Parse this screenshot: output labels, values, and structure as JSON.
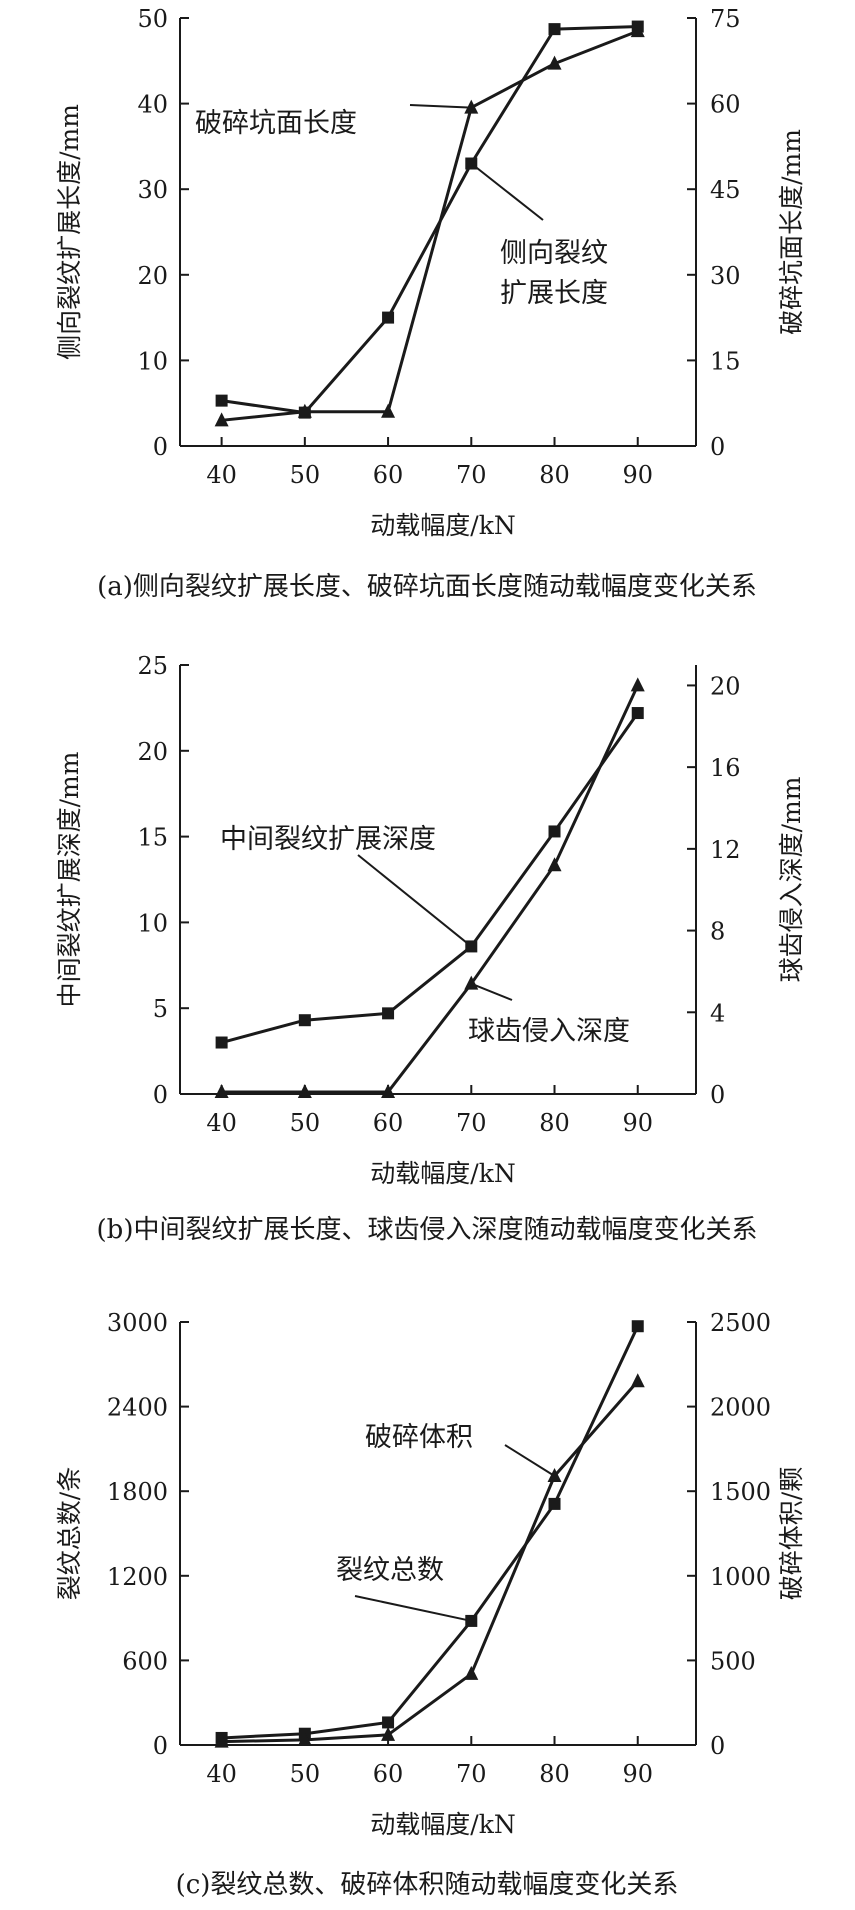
{
  "chart_data": [
    {
      "type": "line",
      "caption": "(a)侧向裂纹扩展长度、破碎坑面长度随动载幅度变化关系",
      "xlabel": "动载幅度/kN",
      "ylabel_left": "侧向裂纹扩展长度/mm",
      "ylabel_right": "破碎坑面长度/mm",
      "x": [
        40,
        50,
        60,
        70,
        80,
        90
      ],
      "xlim": [
        35,
        97
      ],
      "ylim_left": [
        0,
        50
      ],
      "yticks_left": [
        0,
        10,
        20,
        30,
        40,
        50
      ],
      "ylim_right": [
        0,
        75
      ],
      "yticks_right": [
        0,
        15,
        30,
        45,
        60,
        75
      ],
      "series": [
        {
          "name": "侧向裂纹扩展长度",
          "axis": "left",
          "marker": "square",
          "values": [
            5.3,
            3.9,
            15.0,
            33.0,
            48.7,
            49.0
          ]
        },
        {
          "name": "破碎坑面长度",
          "axis": "right",
          "marker": "triangle",
          "values": [
            4.5,
            6.0,
            6.0,
            59.3,
            67.0,
            72.7
          ]
        }
      ],
      "annotations": [
        {
          "label": "破碎坑面长度",
          "series": 1,
          "point": 3
        },
        {
          "label_lines": [
            "侧向裂纹",
            "扩展长度"
          ],
          "series": 0,
          "point": 3
        }
      ]
    },
    {
      "type": "line",
      "caption": "(b)中间裂纹扩展长度、球齿侵入深度随动载幅度变化关系",
      "xlabel": "动载幅度/kN",
      "ylabel_left": "中间裂纹扩展深度/mm",
      "ylabel_right": "球齿侵入深度/mm",
      "x": [
        40,
        50,
        60,
        70,
        80,
        90
      ],
      "xlim": [
        35,
        97
      ],
      "ylim_left": [
        0,
        25
      ],
      "yticks_left": [
        0,
        5,
        10,
        15,
        20,
        25
      ],
      "ylim_right": [
        0,
        21
      ],
      "yticks_right": [
        0,
        4,
        8,
        12,
        16,
        20
      ],
      "series": [
        {
          "name": "中间裂纹扩展深度",
          "axis": "left",
          "marker": "square",
          "values": [
            3.0,
            4.3,
            4.7,
            8.6,
            15.3,
            22.2
          ]
        },
        {
          "name": "球齿侵入深度",
          "axis": "right",
          "marker": "triangle",
          "values": [
            0.1,
            0.1,
            0.1,
            5.4,
            11.2,
            20.0
          ]
        }
      ],
      "annotations": [
        {
          "label": "中间裂纹扩展深度",
          "series": 0,
          "point": 3
        },
        {
          "label": "球齿侵入深度",
          "series": 1,
          "point": 3
        }
      ]
    },
    {
      "type": "line",
      "caption": "(c)裂纹总数、破碎体积随动载幅度变化关系",
      "xlabel": "动载幅度/kN",
      "ylabel_left": "裂纹总数/条",
      "ylabel_right": "破碎体积/颗",
      "x": [
        40,
        50,
        60,
        70,
        80,
        90
      ],
      "xlim": [
        35,
        97
      ],
      "ylim_left": [
        0,
        3000
      ],
      "yticks_left": [
        0,
        600,
        1200,
        1800,
        2400,
        3000
      ],
      "ylim_right": [
        0,
        2500
      ],
      "yticks_right": [
        0,
        500,
        1000,
        1500,
        2000,
        2500
      ],
      "series": [
        {
          "name": "裂纹总数",
          "axis": "left",
          "marker": "square",
          "values": [
            50,
            80,
            160,
            880,
            1710,
            2970
          ]
        },
        {
          "name": "破碎体积",
          "axis": "right",
          "marker": "triangle",
          "values": [
            20,
            30,
            60,
            420,
            1590,
            2150
          ]
        }
      ],
      "annotations": [
        {
          "label": "破碎体积",
          "series": 1,
          "point": 4
        },
        {
          "label": "裂纹总数",
          "series": 0,
          "point": 3
        }
      ]
    }
  ]
}
